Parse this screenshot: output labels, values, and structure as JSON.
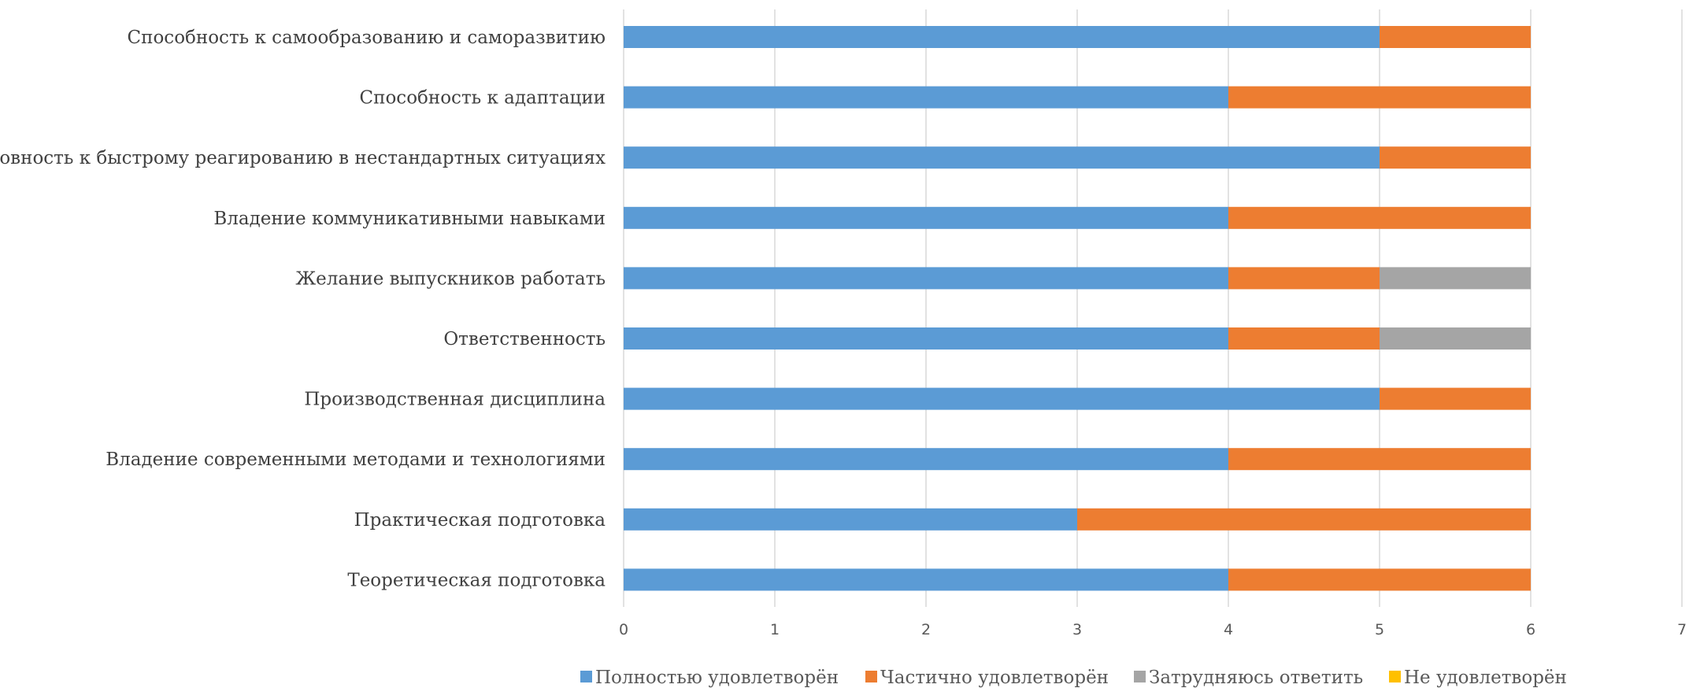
{
  "chart_data": {
    "type": "bar",
    "orientation": "horizontal",
    "stacked": true,
    "categories": [
      "Способность к самообразованию и саморазвитию",
      "Способность к адаптации",
      "Готовность к быстрому реагированию в нестандартных ситуациях",
      "Владение коммуникативными навыками",
      "Желание выпускников работать",
      "Ответственность",
      "Производственная дисциплина",
      "Владение современными методами и технологиями",
      "Практическая подготовка",
      "Теоретическая подготовка"
    ],
    "series": [
      {
        "name": "Полностью удовлетворён",
        "color": "#5B9BD5",
        "values": [
          5,
          4,
          5,
          4,
          4,
          4,
          5,
          4,
          3,
          4
        ]
      },
      {
        "name": "Частично удовлетворён",
        "color": "#ED7D31",
        "values": [
          1,
          2,
          1,
          2,
          1,
          1,
          1,
          2,
          3,
          2
        ]
      },
      {
        "name": "Затрудняюсь ответить",
        "color": "#A5A5A5",
        "values": [
          0,
          0,
          0,
          0,
          1,
          1,
          0,
          0,
          0,
          0
        ]
      },
      {
        "name": "Не удовлетворён",
        "color": "#FFC000",
        "values": [
          0,
          0,
          0,
          0,
          0,
          0,
          0,
          0,
          0,
          0
        ]
      }
    ],
    "xlim": [
      0,
      7
    ],
    "xticks": [
      "0",
      "1",
      "2",
      "3",
      "4",
      "5",
      "6",
      "7"
    ],
    "grid": "vertical",
    "legend_position": "bottom",
    "title": "",
    "xlabel": "",
    "ylabel": ""
  }
}
